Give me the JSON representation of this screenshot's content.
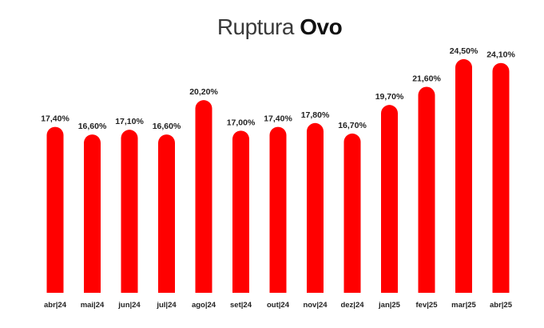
{
  "title": {
    "prefix": "Ruptura",
    "emphasis": "Ovo"
  },
  "colors": {
    "bar": "#ff0000",
    "text": "#222222"
  },
  "chart_data": {
    "type": "bar",
    "title": "Ruptura Ovo",
    "xlabel": "",
    "ylabel": "",
    "categories": [
      "abr|24",
      "mai|24",
      "jun|24",
      "jul|24",
      "ago|24",
      "set|24",
      "out|24",
      "nov|24",
      "dez|24",
      "jan|25",
      "fev|25",
      "mar|25",
      "abr|25"
    ],
    "values": [
      17.4,
      16.6,
      17.1,
      16.6,
      20.2,
      17.0,
      17.4,
      17.8,
      16.7,
      19.7,
      21.6,
      24.5,
      24.1
    ],
    "labels": [
      "17,40%",
      "16,60%",
      "17,10%",
      "16,60%",
      "20,20%",
      "17,00%",
      "17,40%",
      "17,80%",
      "16,70%",
      "19,70%",
      "21,60%",
      "24,50%",
      "24,10%"
    ],
    "ylim": [
      0,
      25.5
    ],
    "grid": false,
    "legend": "none"
  }
}
